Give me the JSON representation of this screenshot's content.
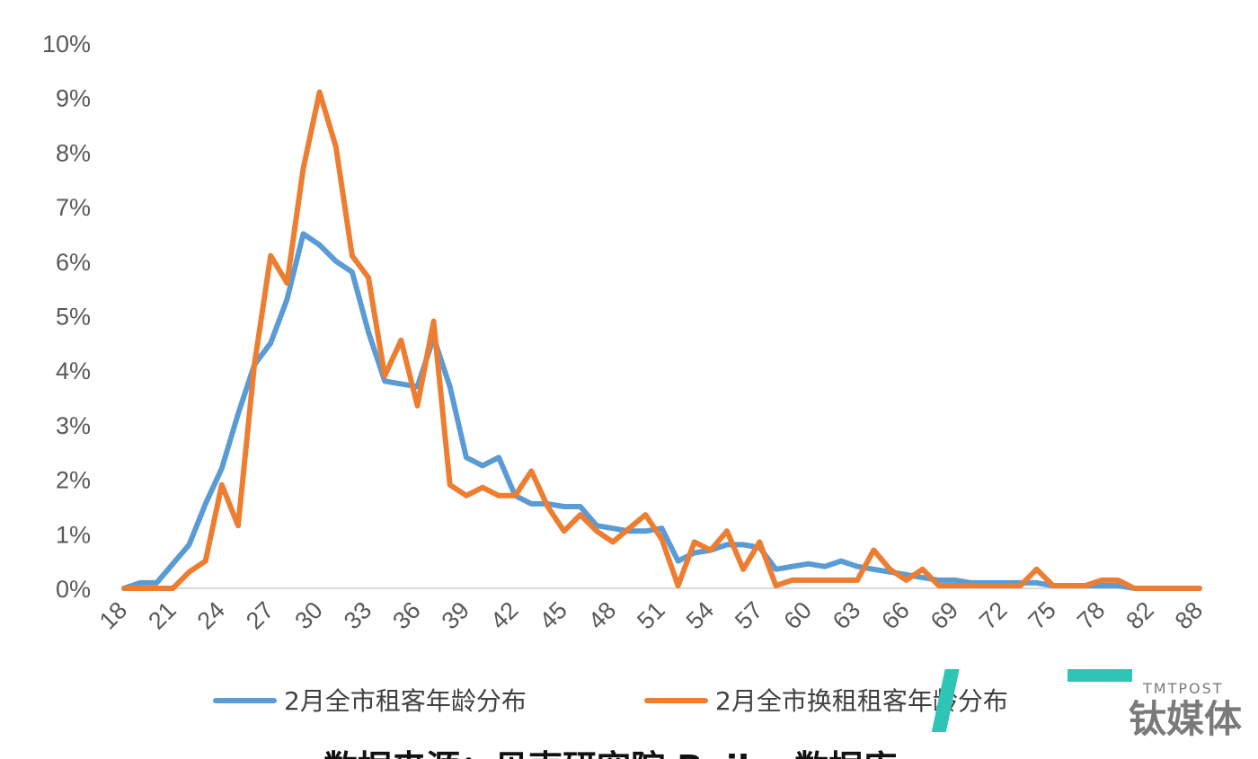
{
  "chart_data": {
    "type": "line",
    "ylim": [
      0,
      10
    ],
    "y_unit": "%",
    "y_ticks": [
      "0%",
      "1%",
      "2%",
      "3%",
      "4%",
      "5%",
      "6%",
      "7%",
      "8%",
      "9%",
      "10%"
    ],
    "x_tick_labels": [
      "18",
      "21",
      "24",
      "27",
      "30",
      "33",
      "36",
      "39",
      "42",
      "45",
      "48",
      "51",
      "54",
      "57",
      "60",
      "63",
      "66",
      "69",
      "72",
      "75",
      "78",
      "82",
      "88"
    ],
    "grid": false,
    "legend_position": "bottom",
    "x": [
      "18",
      "19",
      "20",
      "21",
      "22",
      "23",
      "24",
      "25",
      "26",
      "27",
      "28",
      "29",
      "30",
      "31",
      "32",
      "33",
      "34",
      "35",
      "36",
      "37",
      "38",
      "39",
      "40",
      "41",
      "42",
      "43",
      "44",
      "45",
      "46",
      "47",
      "48",
      "49",
      "50",
      "51",
      "52",
      "53",
      "54",
      "55",
      "56",
      "57",
      "58",
      "59",
      "60",
      "61",
      "62",
      "63",
      "64",
      "65",
      "66",
      "67",
      "68",
      "69",
      "70",
      "71",
      "72",
      "73",
      "74",
      "75",
      "76",
      "77",
      "78",
      "79",
      "80",
      "82",
      "83",
      "86",
      "88"
    ],
    "series": [
      {
        "name": "2月全市租客年龄分布",
        "color": "#5B9BD5",
        "values": [
          0,
          0.1,
          0.1,
          0.45,
          0.8,
          1.55,
          2.2,
          3.2,
          4.1,
          4.5,
          5.3,
          6.5,
          6.3,
          6.0,
          5.8,
          4.7,
          3.8,
          3.75,
          3.7,
          4.6,
          3.7,
          2.4,
          2.25,
          2.4,
          1.7,
          1.55,
          1.55,
          1.5,
          1.5,
          1.15,
          1.1,
          1.05,
          1.05,
          1.1,
          0.5,
          0.65,
          0.7,
          0.8,
          0.8,
          0.75,
          0.35,
          0.4,
          0.45,
          0.4,
          0.5,
          0.4,
          0.35,
          0.3,
          0.25,
          0.2,
          0.15,
          0.15,
          0.1,
          0.1,
          0.1,
          0.1,
          0.1,
          0.05,
          0.05,
          0.05,
          0.05,
          0.05,
          0,
          0,
          0,
          0,
          0
        ]
      },
      {
        "name": "2月全市换租租客年龄分布",
        "color": "#ED7D31",
        "values": [
          0,
          0,
          0,
          0,
          0.3,
          0.5,
          1.9,
          1.15,
          4.1,
          6.1,
          5.6,
          7.7,
          9.1,
          8.1,
          6.1,
          5.7,
          3.9,
          4.55,
          3.35,
          4.9,
          1.9,
          1.7,
          1.85,
          1.7,
          1.7,
          2.15,
          1.5,
          1.05,
          1.35,
          1.05,
          0.85,
          1.1,
          1.35,
          0.9,
          0.05,
          0.85,
          0.7,
          1.05,
          0.35,
          0.85,
          0.05,
          0.15,
          0.15,
          0.15,
          0.15,
          0.15,
          0.7,
          0.35,
          0.15,
          0.35,
          0.05,
          0.05,
          0.05,
          0.05,
          0.05,
          0.05,
          0.35,
          0.05,
          0.05,
          0.05,
          0.15,
          0.15,
          0,
          0,
          0,
          0,
          0
        ]
      }
    ]
  },
  "watermark": {
    "logo_glyph": "T",
    "brand_latin": "TMTPOST",
    "brand_cn": "钛媒体",
    "color": "#2ec4b6"
  },
  "caption_text": "数据来源：贝壳研究院 Beike 数据库"
}
